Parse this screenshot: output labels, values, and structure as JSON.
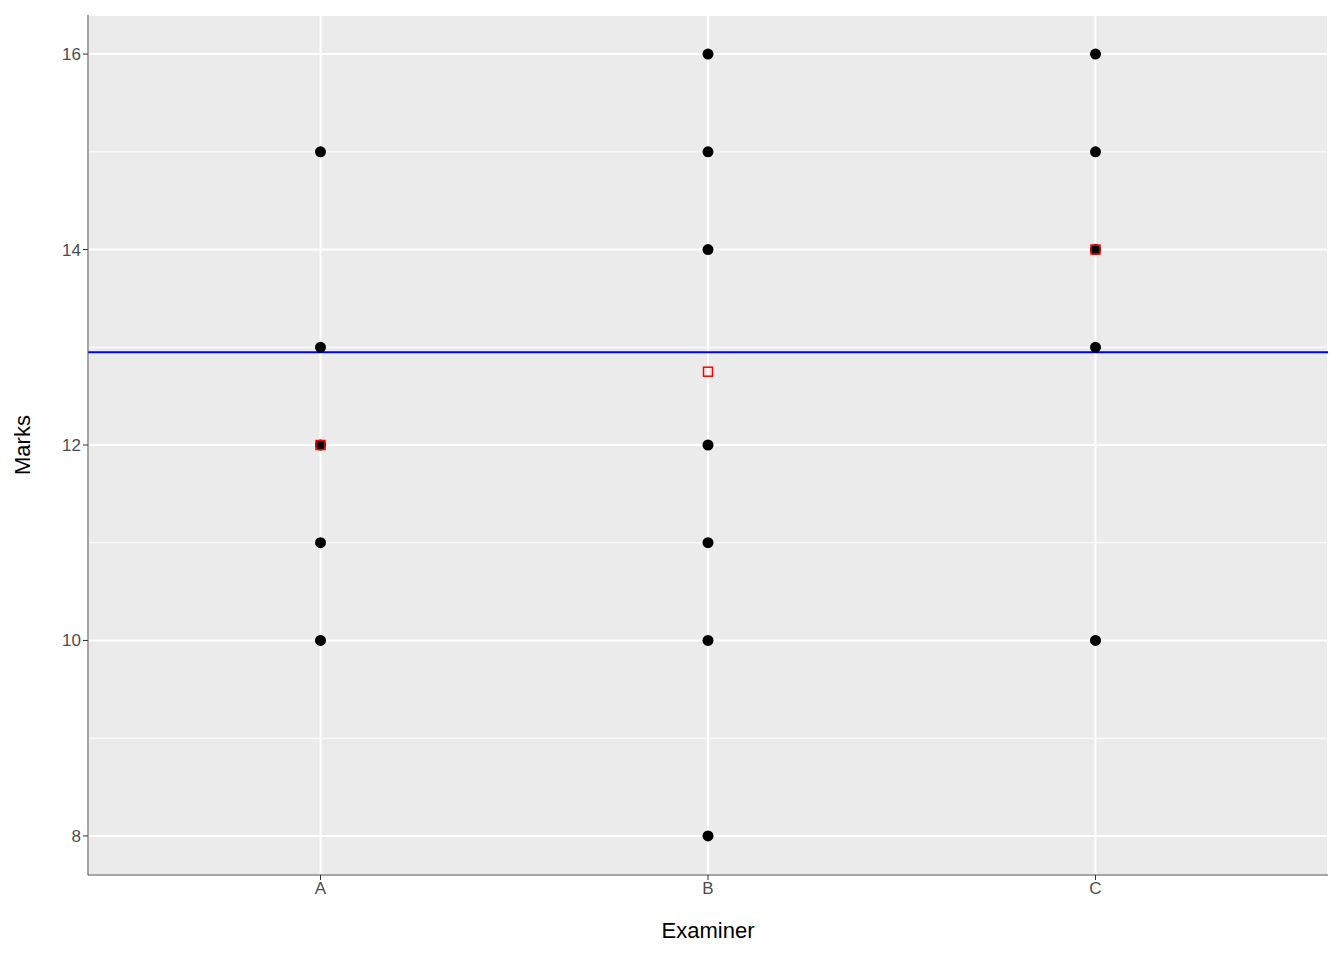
{
  "chart_data": {
    "type": "scatter",
    "x_label": "Examiner",
    "y_label": "Marks",
    "categories": [
      "A",
      "B",
      "C"
    ],
    "ylim": [
      7.6,
      16.4
    ],
    "yticks": [
      8,
      10,
      12,
      14,
      16
    ],
    "grid": true,
    "series": [
      {
        "color": "#000000",
        "marker": "circle",
        "x": [
          "A",
          "A",
          "A",
          "A",
          "A",
          "B",
          "B",
          "B",
          "B",
          "B",
          "B",
          "B",
          "C",
          "C",
          "C",
          "C",
          "C"
        ],
        "values": [
          15,
          13,
          12,
          11,
          10,
          16,
          15,
          14,
          12,
          11,
          10,
          8,
          16,
          15,
          14,
          13,
          10
        ]
      },
      {
        "color": "#ff0000",
        "marker": "square",
        "x": [
          "A",
          "B",
          "C"
        ],
        "values": [
          12,
          12.75,
          14
        ]
      }
    ],
    "hline": {
      "value": 12.95,
      "color": "#0000ff"
    }
  }
}
